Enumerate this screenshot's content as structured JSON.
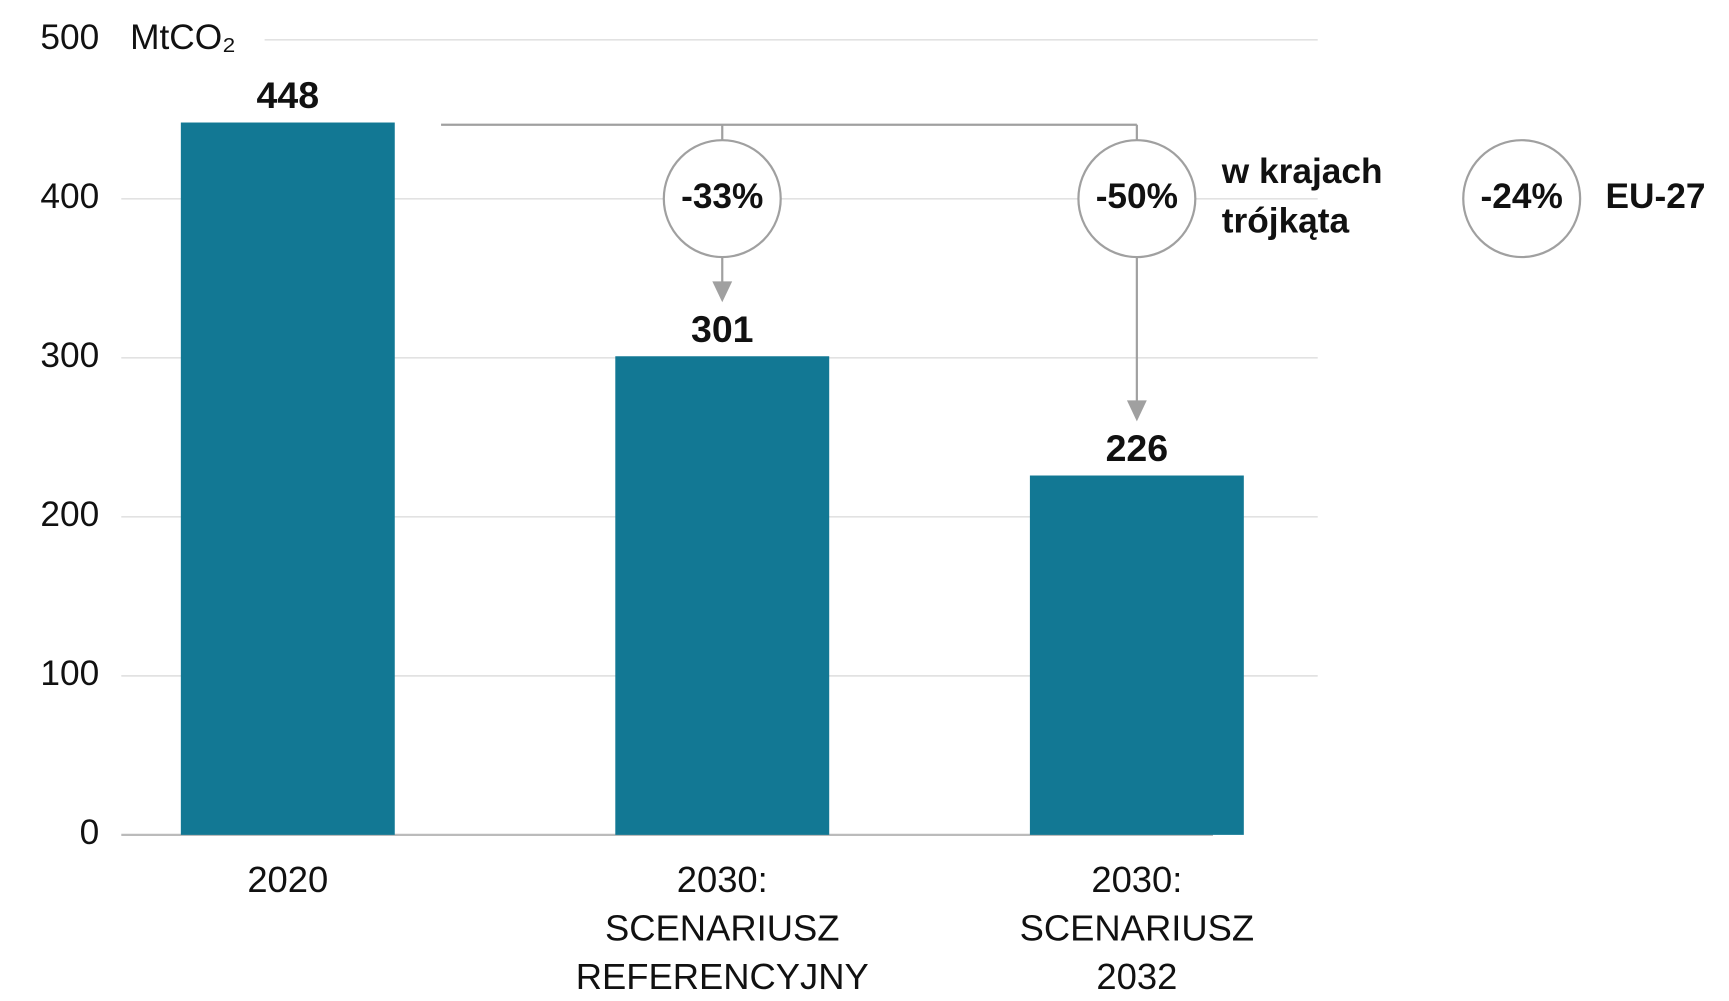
{
  "chart_data": {
    "type": "bar",
    "y_unit": "MtCO₂",
    "categories": [
      [
        "2020"
      ],
      [
        "2030:",
        "SCENARIUSZ",
        "REFERENCYJNY"
      ],
      [
        "2030:",
        "SCENARIUSZ",
        "2032"
      ]
    ],
    "values": [
      448,
      301,
      226
    ],
    "color": "#127894",
    "ylim": [
      0,
      500
    ],
    "yticks": [
      0,
      100,
      200,
      300,
      400,
      500
    ],
    "grid": true,
    "annotations": [
      {
        "circle": "-33%"
      },
      {
        "circle": "-50%",
        "label": [
          "w krajach",
          "trójkąta"
        ]
      },
      {
        "circle": "-24%",
        "label": [
          "EU-27"
        ]
      }
    ]
  }
}
